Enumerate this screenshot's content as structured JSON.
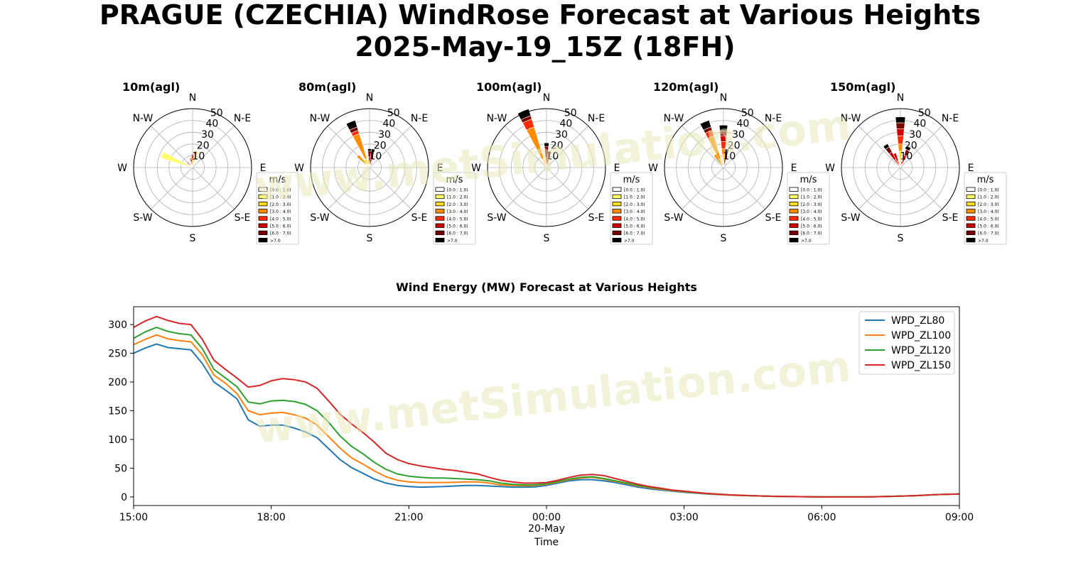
{
  "title": {
    "line1": "PRAGUE (CZECHIA) WindRose Forecast at Various Heights",
    "line2": "2025-May-19_15Z (18FH)"
  },
  "watermark": "www.metSimulation.com",
  "colors": {
    "bins": [
      "#ffffff",
      "#ffff66",
      "#ffdd22",
      "#ff8c00",
      "#ff2a00",
      "#cc0000",
      "#7a0000",
      "#000000"
    ],
    "series": [
      "#1f77b4",
      "#ff7f0e",
      "#2ca02c",
      "#d62728"
    ],
    "watermark": "#e8e8b8"
  },
  "rose": {
    "directions": [
      "N",
      "N-E",
      "E",
      "S-E",
      "S",
      "S-W",
      "W",
      "N-W"
    ],
    "ring_labels": [
      "10",
      "20",
      "30",
      "40",
      "50"
    ],
    "rmax": 50,
    "legend_title": "m/s",
    "bin_labels": [
      "[0.0 : 1.0)",
      "[1.0 : 2.0)",
      "[2.0 : 3.0)",
      "[3.0 : 4.0)",
      "[4.0 : 5.0)",
      "[5.0 : 6.0)",
      "[6.0 : 7.0)",
      ">7.0"
    ]
  },
  "chart_data": [
    {
      "type": "windrose",
      "title": "10m(agl)",
      "sector_width_deg": 11.25,
      "sectors": [
        {
          "dir_deg": 292.5,
          "stack": [
            0,
            28,
            0,
            0,
            0,
            0,
            0,
            0
          ]
        },
        {
          "dir_deg": 303.75,
          "stack": [
            0,
            4,
            0,
            0,
            0,
            0,
            0,
            0
          ]
        },
        {
          "dir_deg": 11.25,
          "stack": [
            0,
            6,
            5,
            3,
            0,
            0,
            0,
            0
          ]
        },
        {
          "dir_deg": 0,
          "stack": [
            0,
            1,
            2,
            3,
            2,
            2,
            1,
            0
          ]
        },
        {
          "dir_deg": 348.75,
          "stack": [
            0,
            0,
            1,
            2,
            2,
            2,
            1,
            0
          ]
        },
        {
          "dir_deg": 315,
          "stack": [
            0,
            0,
            1,
            2,
            2,
            1,
            0,
            0
          ]
        }
      ]
    },
    {
      "type": "windrose",
      "title": "80m(agl)",
      "sector_width_deg": 11.25,
      "sectors": [
        {
          "dir_deg": 337.5,
          "stack": [
            0,
            2,
            6,
            22,
            3,
            0,
            3,
            6
          ]
        },
        {
          "dir_deg": 315,
          "stack": [
            0,
            0,
            5,
            9,
            0,
            0,
            0,
            0
          ]
        },
        {
          "dir_deg": 326.25,
          "stack": [
            0,
            3,
            5,
            0,
            0,
            0,
            0,
            0
          ]
        },
        {
          "dir_deg": 348.75,
          "stack": [
            0,
            2,
            4,
            0,
            0,
            0,
            0,
            0
          ]
        },
        {
          "dir_deg": 0,
          "stack": [
            0,
            0,
            0,
            2,
            3,
            4,
            5,
            2
          ]
        },
        {
          "dir_deg": 11.25,
          "stack": [
            0,
            0,
            0,
            0,
            3,
            4,
            6,
            3
          ]
        },
        {
          "dir_deg": 22.5,
          "stack": [
            0,
            0,
            0,
            0,
            2,
            2,
            0,
            0
          ]
        }
      ]
    },
    {
      "type": "windrose",
      "title": "100m(agl)",
      "sector_width_deg": 11.25,
      "sectors": [
        {
          "dir_deg": 337.5,
          "stack": [
            0,
            2,
            6,
            28,
            7,
            0,
            3,
            6
          ]
        },
        {
          "dir_deg": 326.25,
          "stack": [
            0,
            0,
            4,
            0,
            0,
            0,
            0,
            0
          ]
        },
        {
          "dir_deg": 348.75,
          "stack": [
            0,
            0,
            3,
            0,
            0,
            0,
            0,
            0
          ]
        },
        {
          "dir_deg": 0,
          "stack": [
            0,
            0,
            0,
            0,
            3,
            5,
            10,
            3
          ]
        },
        {
          "dir_deg": 11.25,
          "stack": [
            0,
            0,
            0,
            0,
            3,
            4,
            7,
            0
          ]
        },
        {
          "dir_deg": 22.5,
          "stack": [
            0,
            0,
            0,
            0,
            2,
            2,
            0,
            0
          ]
        }
      ]
    },
    {
      "type": "windrose",
      "title": "120m(agl)",
      "sector_width_deg": 11.25,
      "sectors": [
        {
          "dir_deg": 337.5,
          "stack": [
            0,
            2,
            6,
            20,
            5,
            0,
            3,
            6
          ]
        },
        {
          "dir_deg": 326.25,
          "stack": [
            0,
            0,
            0,
            13,
            0,
            0,
            0,
            0
          ]
        },
        {
          "dir_deg": 348.75,
          "stack": [
            0,
            0,
            0,
            0,
            4,
            0,
            0,
            0
          ]
        },
        {
          "dir_deg": 0,
          "stack": [
            0,
            5,
            6,
            5,
            6,
            5,
            4,
            5
          ]
        },
        {
          "dir_deg": 11.25,
          "stack": [
            0,
            0,
            0,
            0,
            3,
            4,
            6,
            3
          ]
        },
        {
          "dir_deg": 22.5,
          "stack": [
            0,
            0,
            0,
            0,
            2,
            2,
            0,
            0
          ]
        }
      ]
    },
    {
      "type": "windrose",
      "title": "150m(agl)",
      "sector_width_deg": 11.25,
      "sectors": [
        {
          "dir_deg": 0,
          "stack": [
            0,
            6,
            8,
            6,
            7,
            6,
            5,
            5
          ]
        },
        {
          "dir_deg": 337.5,
          "stack": [
            0,
            0,
            0,
            0,
            6,
            7,
            0,
            0
          ]
        },
        {
          "dir_deg": 326.25,
          "stack": [
            0,
            0,
            0,
            0,
            8,
            7,
            5,
            3
          ]
        },
        {
          "dir_deg": 22.5,
          "stack": [
            0,
            0,
            0,
            0,
            3,
            8,
            5,
            3
          ]
        },
        {
          "dir_deg": 11.25,
          "stack": [
            0,
            0,
            0,
            0,
            2,
            3,
            0,
            0
          ]
        }
      ]
    },
    {
      "type": "line",
      "title": "Wind Energy (MW) Forecast at Various Heights",
      "xlabel": "Time",
      "x_tick_labels": [
        "15:00",
        "18:00",
        "21:00",
        "00:00",
        "03:00",
        "06:00",
        "09:00"
      ],
      "x_tick_sublabel": "20-May",
      "x_hours": [
        0,
        3,
        6,
        9,
        12,
        15,
        18
      ],
      "y_ticks": [
        0,
        50,
        100,
        150,
        200,
        250,
        300
      ],
      "xlim": [
        0,
        18
      ],
      "ylim": [
        -15,
        331
      ],
      "legend": "top-right",
      "x": [
        0,
        0.25,
        0.5,
        0.75,
        1,
        1.25,
        1.5,
        1.75,
        2,
        2.25,
        2.5,
        2.75,
        3,
        3.25,
        3.5,
        3.75,
        4,
        4.25,
        4.5,
        4.75,
        5,
        5.25,
        5.5,
        5.75,
        6,
        6.25,
        6.5,
        6.75,
        7,
        7.25,
        7.5,
        7.75,
        8,
        8.25,
        8.5,
        8.75,
        9,
        9.25,
        9.5,
        9.75,
        10,
        10.25,
        10.5,
        10.75,
        11,
        11.25,
        11.5,
        11.75,
        12,
        12.5,
        13,
        13.5,
        14,
        14.5,
        15,
        15.5,
        16,
        16.5,
        17,
        17.5,
        18
      ],
      "series": [
        {
          "name": "WPD_ZL80",
          "values": [
            250,
            259,
            266,
            260,
            258,
            256,
            232,
            200,
            186,
            171,
            134,
            123,
            125,
            125,
            120,
            113,
            103,
            84,
            65,
            51,
            41,
            31,
            24,
            20,
            18,
            17,
            17.5,
            18,
            19,
            20,
            20,
            19,
            18,
            17,
            17,
            17.5,
            20,
            24,
            28,
            30,
            30,
            28,
            25,
            21,
            17,
            14,
            12,
            10,
            8,
            5,
            3,
            2,
            1,
            0.5,
            0,
            0,
            0,
            1,
            2,
            4,
            5
          ]
        },
        {
          "name": "WPD_ZL100",
          "values": [
            265,
            274,
            282,
            275,
            272,
            270,
            247,
            212,
            198,
            180,
            150,
            143,
            146,
            147,
            143,
            137,
            125,
            105,
            85,
            68,
            57,
            45,
            35,
            29,
            26,
            25,
            25,
            25,
            25.5,
            26,
            26,
            24,
            21,
            20,
            19.5,
            20,
            22,
            26,
            30,
            33,
            34,
            31,
            27,
            23,
            19,
            16,
            13,
            11,
            9,
            5.5,
            3,
            2,
            1,
            0.5,
            0,
            0,
            0,
            1,
            2,
            4,
            5
          ]
        },
        {
          "name": "WPD_ZL120",
          "values": [
            276,
            287,
            295,
            288,
            284,
            282,
            258,
            222,
            207,
            192,
            165,
            162,
            167,
            168,
            166,
            161,
            150,
            130,
            106,
            88,
            75,
            60,
            48,
            40,
            36,
            34,
            33,
            33,
            32,
            31,
            30,
            28,
            24,
            22,
            21,
            21,
            23,
            27,
            31,
            34,
            35,
            32,
            28,
            24,
            20,
            17,
            14,
            11.5,
            9.5,
            6,
            3.5,
            2,
            1,
            0.5,
            0,
            0,
            0,
            1,
            2,
            4,
            5
          ]
        },
        {
          "name": "WPD_ZL150",
          "values": [
            295,
            306,
            314,
            307,
            302,
            300,
            274,
            238,
            222,
            207,
            191,
            194,
            202,
            206,
            204,
            200,
            189,
            167,
            144,
            127,
            112,
            95,
            76,
            65,
            58,
            54,
            51,
            48,
            46,
            43,
            40,
            34,
            29,
            26,
            24,
            24,
            25,
            29,
            34,
            38,
            39,
            37,
            32,
            27,
            22,
            18,
            15,
            12,
            10,
            6,
            3.5,
            2,
            1,
            0.5,
            0,
            0,
            0,
            1,
            2,
            4,
            5
          ]
        }
      ]
    }
  ]
}
